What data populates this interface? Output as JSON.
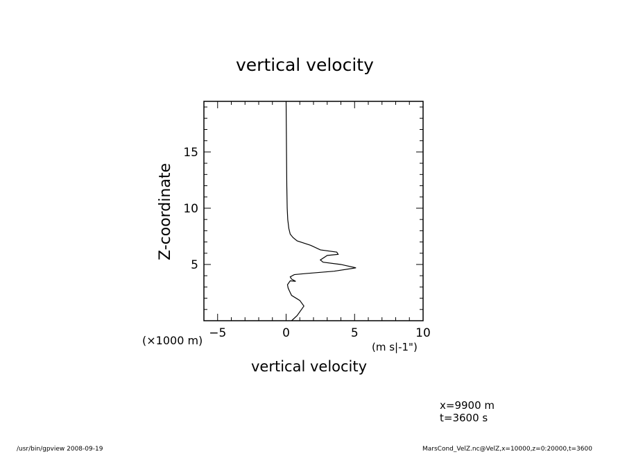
{
  "chart_data": {
    "type": "line",
    "title": "vertical velocity",
    "xlabel": "vertical velocity",
    "x_unit": "(m s|-1\")",
    "ylabel": "Z-coordinate",
    "y_unit": "(×1000 m)",
    "xlim": [
      -6,
      10
    ],
    "ylim": [
      0,
      19.5
    ],
    "xticks": [
      -5,
      0,
      5,
      10
    ],
    "yticks": [
      5,
      10,
      15
    ],
    "series": [
      {
        "x": [
          0.4,
          0.8,
          1.3,
          1.0,
          0.4,
          0.3,
          0.15,
          0.1,
          0.3,
          0.7,
          0.4,
          0.3,
          0.6,
          1.5,
          3.5,
          5.1,
          4.0,
          2.7,
          2.5,
          3.0,
          3.8,
          3.7,
          2.5,
          1.8,
          0.8,
          0.5,
          0.3,
          0.2,
          0.12,
          0.08,
          0.05,
          0.03,
          0.0
        ],
        "y": [
          0.0,
          0.45,
          1.3,
          1.8,
          2.25,
          2.5,
          2.9,
          3.2,
          3.55,
          3.5,
          3.7,
          3.9,
          4.1,
          4.2,
          4.4,
          4.7,
          5.0,
          5.2,
          5.4,
          5.8,
          5.9,
          6.1,
          6.3,
          6.7,
          7.1,
          7.4,
          7.7,
          8.2,
          9.0,
          10.0,
          12.0,
          15.0,
          19.5
        ]
      }
    ]
  },
  "info": {
    "x_position": "x=9900  m",
    "time": "t=3600  s"
  },
  "footer": {
    "left": "/usr/bin/gpview   2008-09-19",
    "right": "MarsCond_VelZ.nc@VelZ,x=10000,z=0:20000,t=3600"
  }
}
